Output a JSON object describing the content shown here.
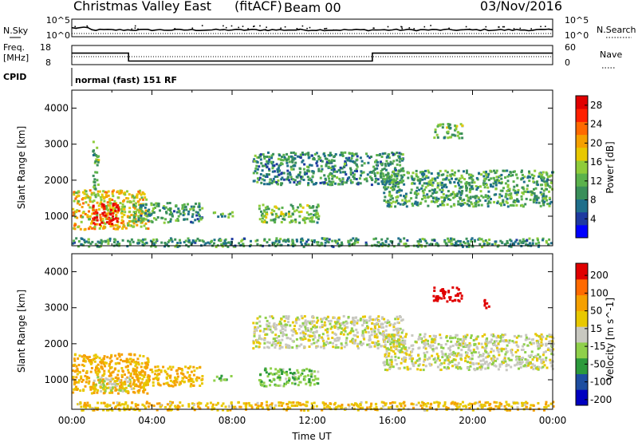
{
  "header": {
    "station": "Christmas Valley East",
    "mode": "(fitACF)",
    "beam": "Beam 00",
    "date": "03/Nov/2016"
  },
  "sidepanel": {
    "nsky_label": "N.Sky",
    "nsearch_label": "N.Search",
    "freq_label_1": "Freq.",
    "freq_label_2": "[MHz]",
    "nave_label": "Nave",
    "cpid_label": "CPID",
    "cpid_text": "normal (fast) 151 RF"
  },
  "chart_data": [
    {
      "type": "line",
      "name": "noise_panel",
      "left_ticks": [
        "10^5",
        "10^0"
      ],
      "right_ticks": [
        "10^5",
        "10^0"
      ],
      "series_desc": "N.Sky (points) and N.Search (dotted)"
    },
    {
      "type": "line",
      "name": "freq_nave_panel",
      "left_ticks": [
        18,
        8
      ],
      "right_ticks": [
        60,
        0
      ],
      "freq_mhz": [
        {
          "x": "00:00",
          "y": 16
        },
        {
          "x": "02:50",
          "y": 16
        },
        {
          "x": "02:50",
          "y": 10.5
        },
        {
          "x": "15:00",
          "y": 10.5
        },
        {
          "x": "15:00",
          "y": 16
        },
        {
          "x": "24:00",
          "y": 16
        }
      ],
      "nave_approx": [
        {
          "x": "00:00",
          "y": 25
        },
        {
          "x": "24:00",
          "y": 25
        }
      ]
    },
    {
      "type": "heatmap",
      "name": "power",
      "ylabel": "Slant Range [km]",
      "xlim": [
        "00:00",
        "24:00"
      ],
      "ylim": [
        180,
        4500
      ],
      "yticks": [
        1000,
        2000,
        3000,
        4000
      ],
      "colorbar_label": "Power [dB]",
      "colorbar_ticks": [
        4,
        8,
        12,
        16,
        20,
        24,
        28
      ],
      "colorbar_range": [
        0,
        30
      ],
      "regions": [
        {
          "t0": 0.0,
          "t1": 3.8,
          "r0": 650,
          "r1": 1750,
          "value": 18
        },
        {
          "t0": 1.0,
          "t1": 2.3,
          "r0": 800,
          "r1": 1400,
          "value": 28
        },
        {
          "t0": 1.0,
          "t1": 1.3,
          "r0": 1600,
          "r1": 3100,
          "value": 12
        },
        {
          "t0": 3.0,
          "t1": 6.5,
          "r0": 850,
          "r1": 1400,
          "value": 10
        },
        {
          "t0": 7.0,
          "t1": 8.0,
          "r0": 1000,
          "r1": 1150,
          "value": 12
        },
        {
          "t0": 9.3,
          "t1": 12.3,
          "r0": 850,
          "r1": 1350,
          "value": 13
        },
        {
          "t0": 9.0,
          "t1": 16.5,
          "r0": 1900,
          "r1": 2800,
          "value": 9
        },
        {
          "t0": 15.5,
          "t1": 24.0,
          "r0": 1300,
          "r1": 2300,
          "value": 11
        },
        {
          "t0": 18.0,
          "t1": 19.5,
          "r0": 3200,
          "r1": 3600,
          "value": 12
        },
        {
          "t0": 0.0,
          "t1": 24.0,
          "r0": 180,
          "r1": 420,
          "value": 10
        }
      ]
    },
    {
      "type": "heatmap",
      "name": "velocity",
      "ylabel": "Slant Range [km]",
      "xlabel": "Time UT",
      "xlim": [
        "00:00",
        "24:00"
      ],
      "xticks": [
        "00:00",
        "04:00",
        "08:00",
        "12:00",
        "16:00",
        "20:00",
        "00:00"
      ],
      "ylim": [
        180,
        4500
      ],
      "yticks": [
        1000,
        2000,
        3000,
        4000
      ],
      "colorbar_label": "Velocity [m s^-1]",
      "colorbar_ticks": [
        200,
        100,
        50,
        15,
        -15,
        -50,
        -100,
        -200
      ],
      "regions": [
        {
          "t0": 0.0,
          "t1": 3.8,
          "r0": 650,
          "r1": 1750,
          "value": -60
        },
        {
          "t0": 1.0,
          "t1": 3.0,
          "r0": 700,
          "r1": 1100,
          "value": 0
        },
        {
          "t0": 3.0,
          "t1": 6.5,
          "r0": 850,
          "r1": 1400,
          "value": -50
        },
        {
          "t0": 7.0,
          "t1": 8.0,
          "r0": 1000,
          "r1": 1150,
          "value": 30
        },
        {
          "t0": 9.3,
          "t1": 12.3,
          "r0": 850,
          "r1": 1350,
          "value": 40
        },
        {
          "t0": 9.0,
          "t1": 16.5,
          "r0": 1900,
          "r1": 2800,
          "value": 0
        },
        {
          "t0": 15.5,
          "t1": 24.0,
          "r0": 1300,
          "r1": 2300,
          "value": 0
        },
        {
          "t0": 18.0,
          "t1": 19.5,
          "r0": 3200,
          "r1": 3600,
          "value": -250
        },
        {
          "t0": 20.5,
          "t1": 20.8,
          "r0": 3000,
          "r1": 3300,
          "value": -250
        },
        {
          "t0": 0.0,
          "t1": 24.0,
          "r0": 180,
          "r1": 420,
          "value": -40
        }
      ]
    }
  ],
  "colors": {
    "frame": "#000000",
    "power_scale": [
      "#0000ff",
      "#1e3aa0",
      "#1f6f8b",
      "#3a8f5a",
      "#5bb24c",
      "#8fcc3a",
      "#e8c800",
      "#f5a000",
      "#ff6a00",
      "#ff2000",
      "#e00000"
    ],
    "velocity_scale": [
      "#e00000",
      "#ff6a00",
      "#f5a000",
      "#e8c800",
      "#c8c8c0",
      "#8fd04a",
      "#2c9a3c",
      "#1e4ea0",
      "#0000c0"
    ]
  }
}
